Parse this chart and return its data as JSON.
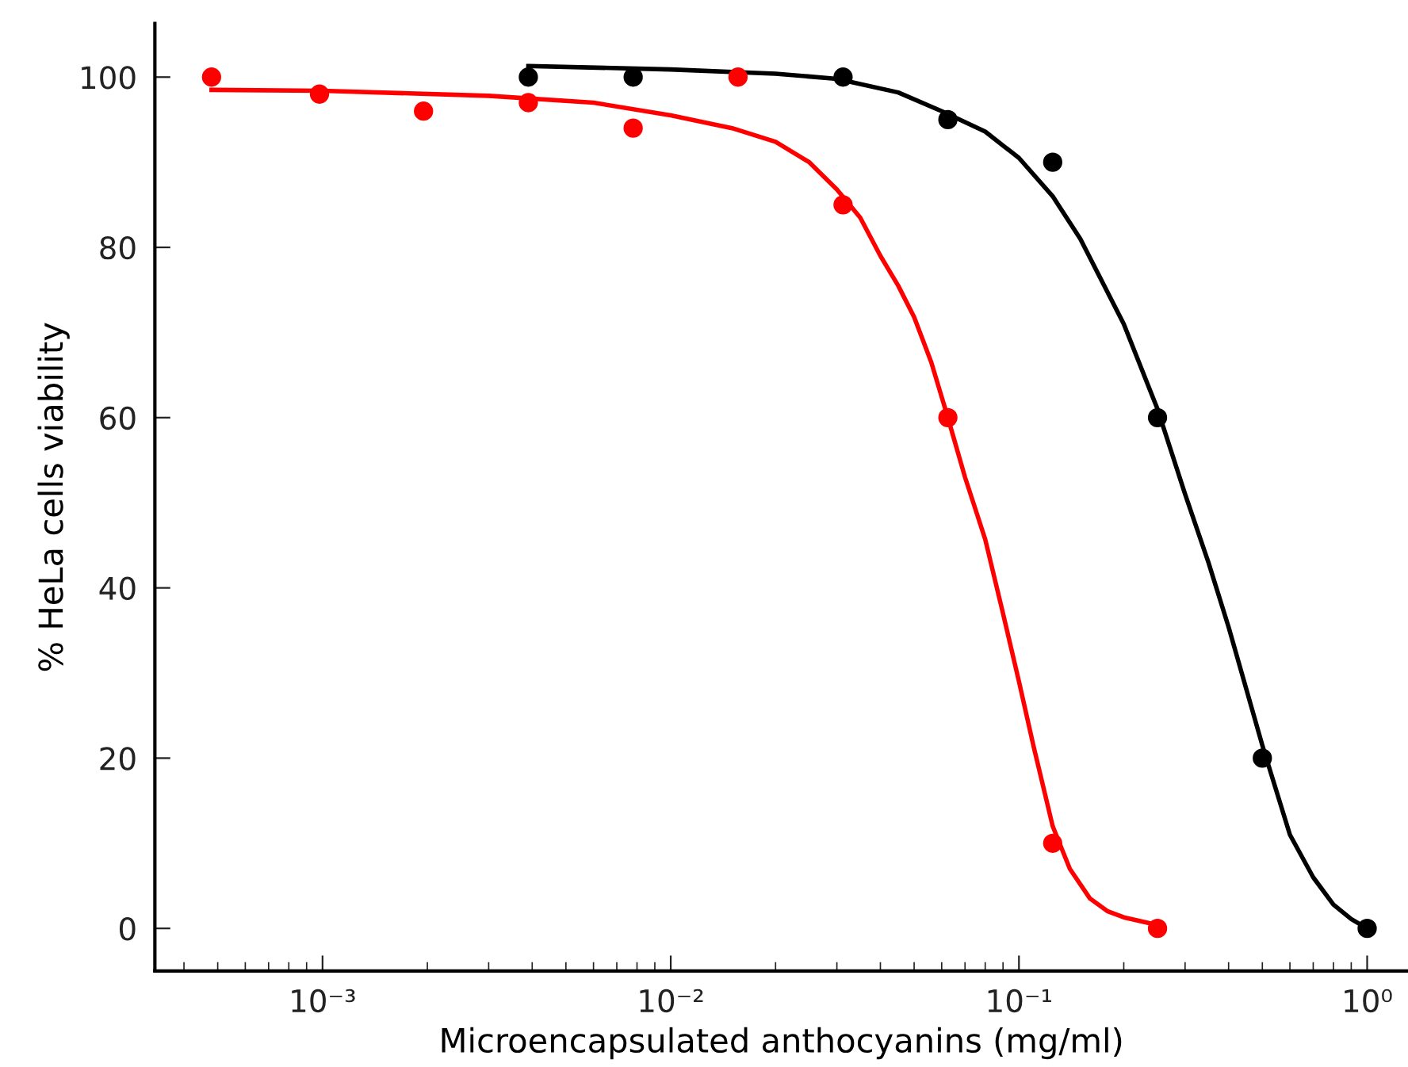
{
  "chart_data": {
    "type": "scatter",
    "xlabel": "Microencapsulated anthocyanins (mg/ml)",
    "ylabel": "% HeLa cells viability",
    "log": "x",
    "grid": false,
    "marker": "circle",
    "xlim": [
      0.00033,
      1.31
    ],
    "xticks": [
      {
        "value": 0.001,
        "label": "10⁻³"
      },
      {
        "value": 0.01,
        "label": "10⁻²"
      },
      {
        "value": 0.1,
        "label": "10⁻¹"
      },
      {
        "value": 1,
        "label": "10⁰"
      }
    ],
    "ylim": [
      -5,
      106.3
    ],
    "yticks": [
      0,
      20,
      40,
      60,
      80,
      100
    ],
    "series": [
      {
        "type": "line",
        "color": "#000000",
        "marker": "none",
        "x": [
          0.0039,
          0.01,
          0.02,
          0.03,
          0.045,
          0.06,
          0.08,
          0.1,
          0.125,
          0.15,
          0.2,
          0.25,
          0.3,
          0.35,
          0.4,
          0.5,
          0.6,
          0.7,
          0.8,
          0.9,
          1.0
        ],
        "values": [
          101.3,
          100.9,
          100.4,
          99.8,
          98.2,
          96,
          93.6,
          90.5,
          86,
          81,
          71,
          61,
          51,
          43,
          35.4,
          21.5,
          11,
          6,
          2.8,
          1.1,
          0
        ]
      },
      {
        "color": "#000000",
        "x": [
          0.0039,
          0.0078,
          0.03125,
          0.0625,
          0.125,
          0.25,
          0.5,
          1.0
        ],
        "values": [
          100,
          100,
          100,
          95,
          90,
          60,
          20,
          0
        ]
      },
      {
        "type": "line",
        "color": "#ff0000",
        "marker": "none",
        "x": [
          0.00048,
          0.001,
          0.003,
          0.006,
          0.01,
          0.015,
          0.02,
          0.025,
          0.03,
          0.035,
          0.04,
          0.045,
          0.05,
          0.056,
          0.0625,
          0.07,
          0.08,
          0.09,
          0.1,
          0.11,
          0.125,
          0.14,
          0.16,
          0.18,
          0.2,
          0.25
        ],
        "values": [
          98.5,
          98.4,
          97.8,
          97,
          95.5,
          94,
          92.4,
          90,
          86.8,
          83.5,
          79,
          75.5,
          71.8,
          66.5,
          60,
          53,
          45.7,
          37,
          29,
          21.5,
          12,
          7,
          3.5,
          2,
          1.3,
          0.4
        ]
      },
      {
        "color": "#ff0000",
        "x": [
          0.00048,
          0.00098,
          0.00195,
          0.0039,
          0.0078,
          0.0156,
          0.03125,
          0.0625,
          0.125,
          0.25
        ],
        "values": [
          100,
          98,
          96,
          97,
          94,
          100,
          85,
          60,
          10,
          0
        ]
      }
    ]
  }
}
